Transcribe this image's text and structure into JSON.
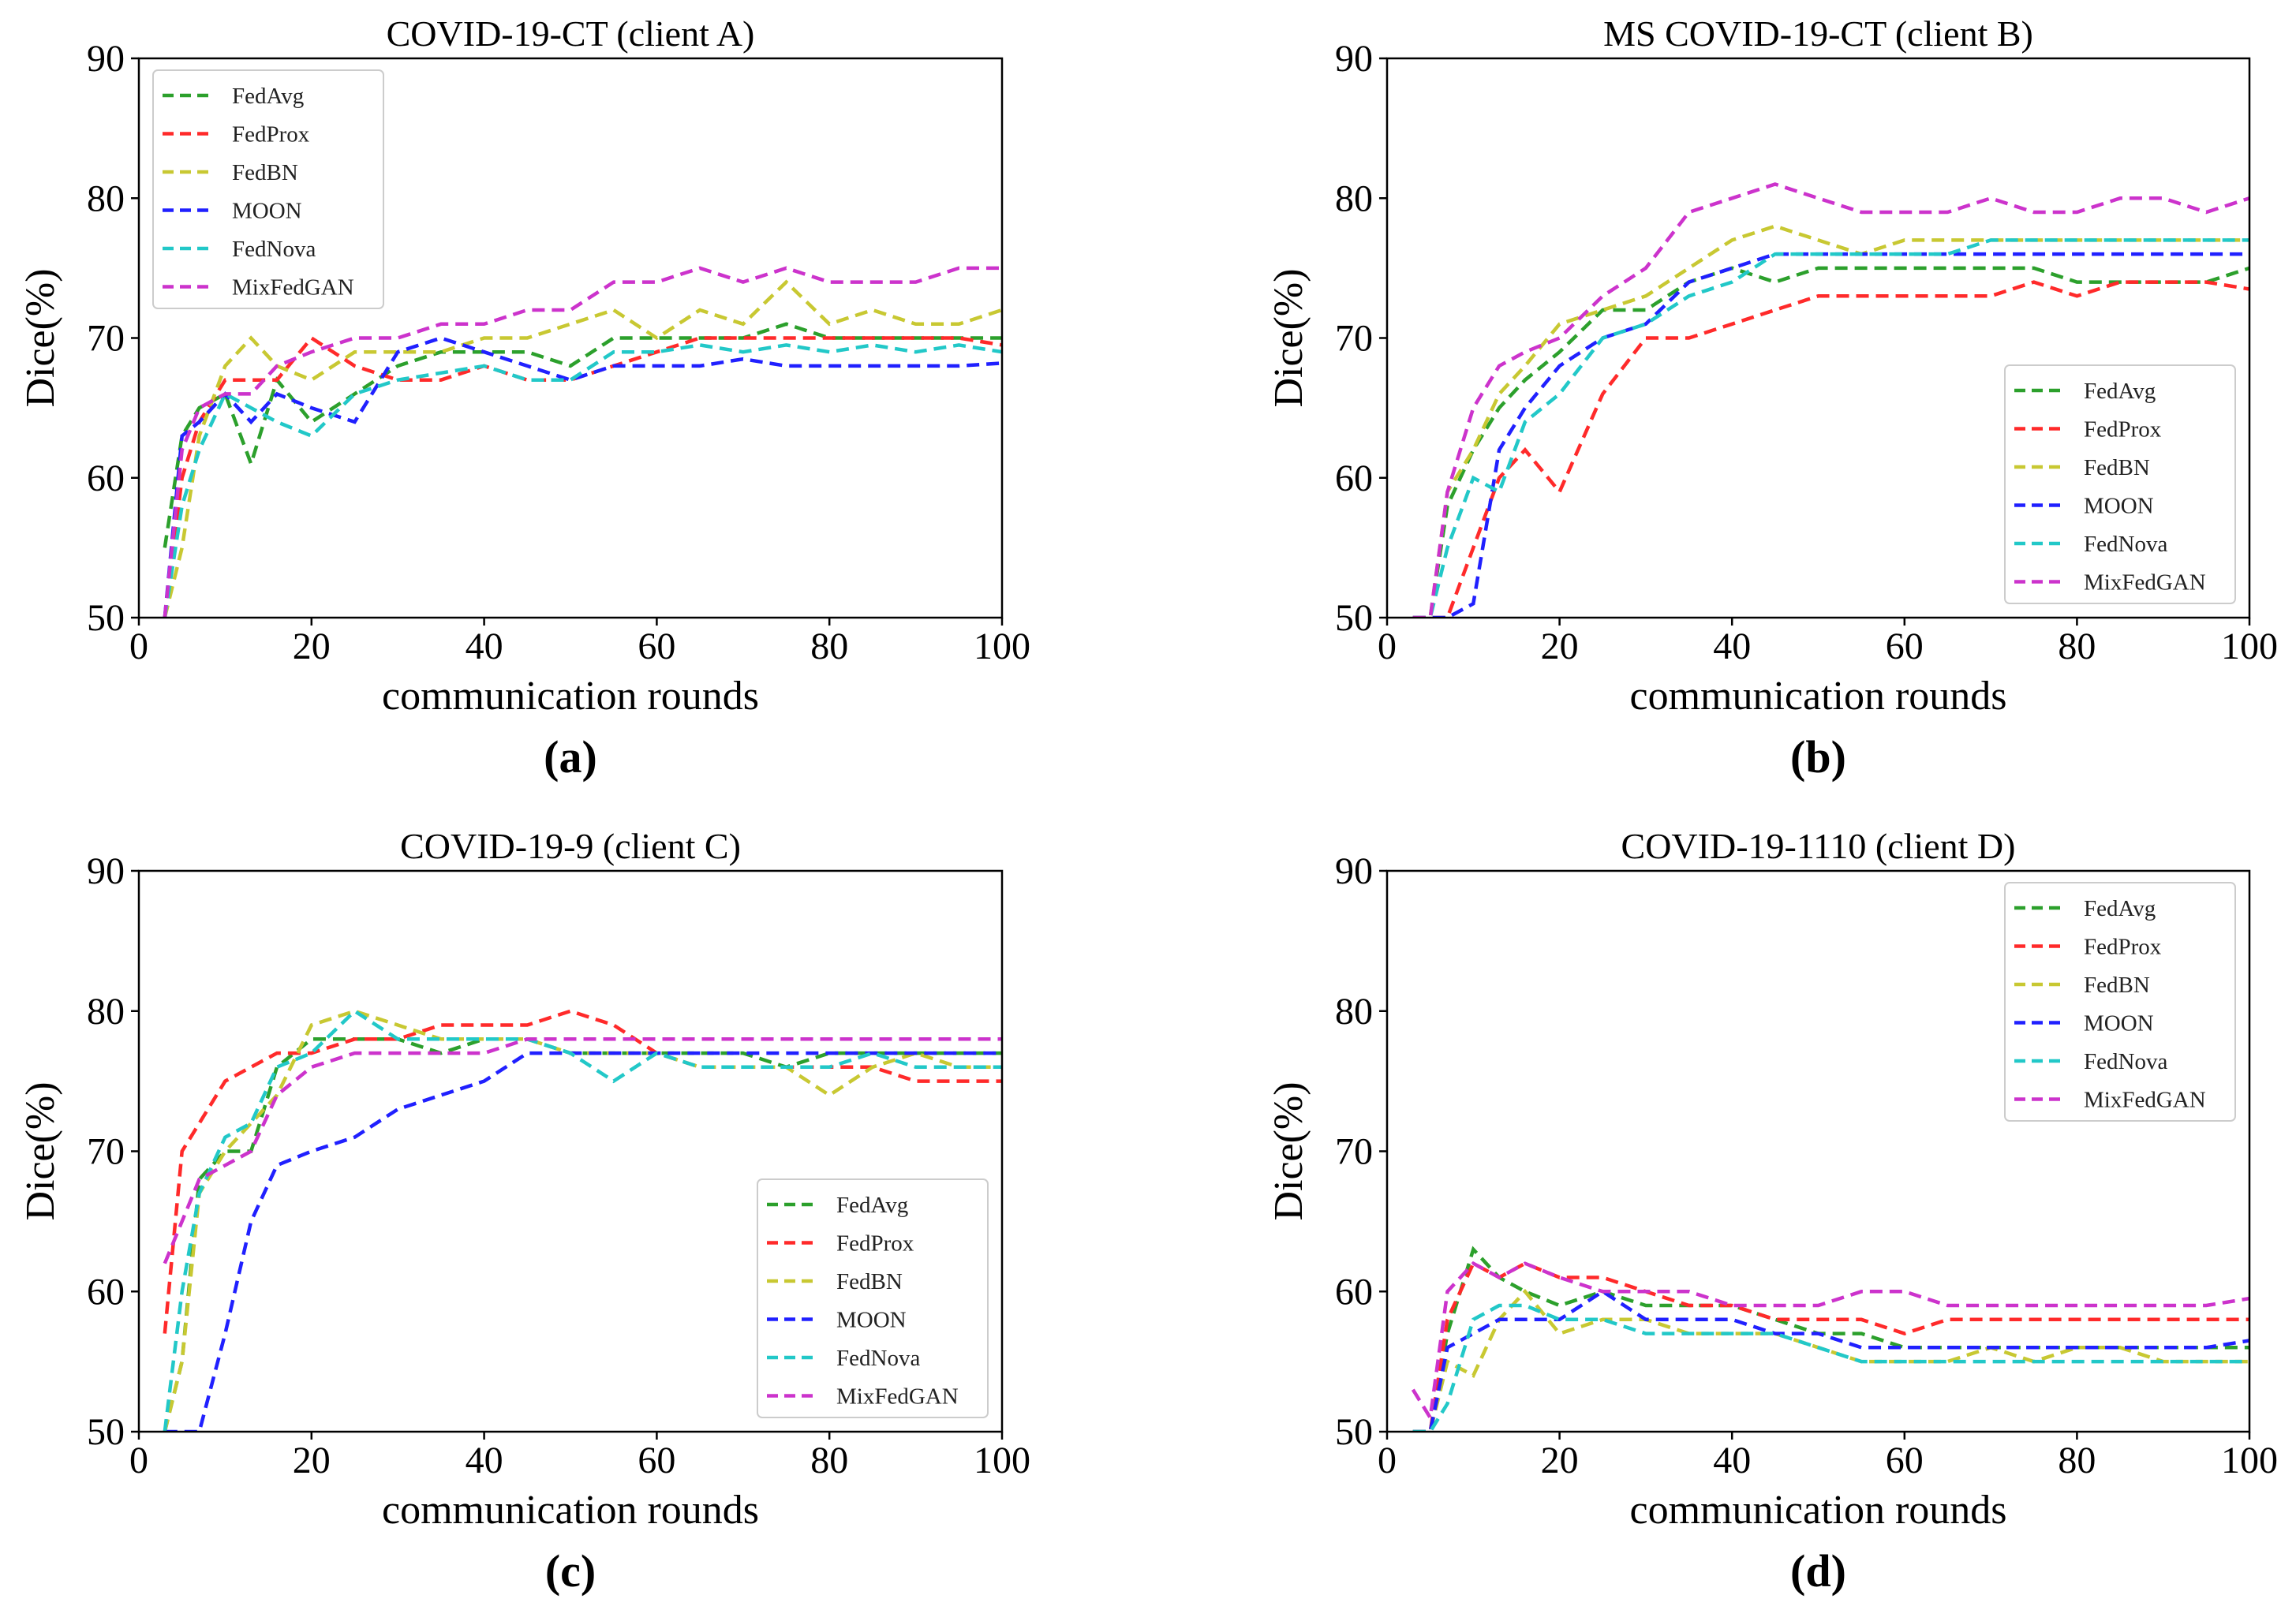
{
  "chart_data": [
    {
      "type": "line",
      "panel_label": "(a)",
      "title": "COVID-19-CT (client A)",
      "xlabel": "communication rounds",
      "ylabel": "Dice(%)",
      "xlim": [
        0,
        100
      ],
      "ylim": [
        50,
        90
      ],
      "xticks": [
        "0",
        "20",
        "40",
        "60",
        "80",
        "100"
      ],
      "yticks": [
        "50",
        "60",
        "70",
        "80",
        "90"
      ],
      "legend": "top-left",
      "x": [
        3,
        5,
        7,
        10,
        13,
        16,
        20,
        25,
        30,
        35,
        40,
        45,
        50,
        55,
        60,
        65,
        70,
        75,
        80,
        85,
        90,
        95,
        100
      ],
      "series": [
        {
          "name": "FedAvg",
          "color": "#2ca02c",
          "values": [
            55,
            63,
            65,
            66,
            61,
            67,
            64,
            66,
            68,
            69,
            69,
            69,
            68,
            70,
            70,
            70,
            70,
            71,
            70,
            70,
            70,
            70,
            70
          ]
        },
        {
          "name": "FedProx",
          "color": "#ff2a2a",
          "values": [
            50,
            60,
            64,
            67,
            67,
            67,
            70,
            68,
            67,
            67,
            68,
            67,
            67,
            68,
            69,
            70,
            70,
            70,
            70,
            70,
            70,
            70,
            69.5
          ]
        },
        {
          "name": "FedBN",
          "color": "#c8c832",
          "values": [
            50,
            55,
            63,
            68,
            70,
            68,
            67,
            69,
            69,
            69,
            70,
            70,
            71,
            72,
            70,
            72,
            71,
            74,
            71,
            72,
            71,
            71,
            72
          ]
        },
        {
          "name": "MOON",
          "color": "#2020ff",
          "values": [
            50,
            63,
            64,
            66,
            64,
            66,
            65,
            64,
            69,
            70,
            69,
            68,
            67,
            68,
            68,
            68,
            68.5,
            68,
            68,
            68,
            68,
            68,
            68.2
          ]
        },
        {
          "name": "FedNova",
          "color": "#22c8c8",
          "values": [
            50,
            58,
            62,
            66,
            65,
            64,
            63,
            66,
            67,
            67.5,
            68,
            67,
            67,
            69,
            69,
            69.5,
            69,
            69.5,
            69,
            69.5,
            69,
            69.5,
            69
          ]
        },
        {
          "name": "MixFedGAN",
          "color": "#cc33cc",
          "values": [
            50,
            62,
            65,
            66,
            66,
            68,
            69,
            70,
            70,
            71,
            71,
            72,
            72,
            74,
            74,
            75,
            74,
            75,
            74,
            74,
            74,
            75,
            75
          ]
        }
      ]
    },
    {
      "type": "line",
      "panel_label": "(b)",
      "title": "MS COVID-19-CT (client B)",
      "xlabel": "communication rounds",
      "ylabel": "Dice(%)",
      "xlim": [
        0,
        100
      ],
      "ylim": [
        50,
        90
      ],
      "xticks": [
        "0",
        "20",
        "40",
        "60",
        "80",
        "100"
      ],
      "yticks": [
        "50",
        "60",
        "70",
        "80",
        "90"
      ],
      "legend": "lower-right",
      "x": [
        3,
        5,
        7,
        10,
        13,
        16,
        20,
        25,
        30,
        35,
        40,
        45,
        50,
        55,
        60,
        65,
        70,
        75,
        80,
        85,
        90,
        95,
        100
      ],
      "series": [
        {
          "name": "FedAvg",
          "color": "#2ca02c",
          "values": [
            50,
            50,
            58,
            62,
            65,
            67,
            69,
            72,
            72,
            74,
            75,
            74,
            75,
            75,
            75,
            75,
            75,
            75,
            74,
            74,
            74,
            74,
            75
          ]
        },
        {
          "name": "FedProx",
          "color": "#ff2a2a",
          "values": [
            50,
            50,
            50,
            55,
            60,
            62,
            59,
            66,
            70,
            70,
            71,
            72,
            73,
            73,
            73,
            73,
            73,
            74,
            73,
            74,
            74,
            74,
            73.5
          ]
        },
        {
          "name": "FedBN",
          "color": "#c8c832",
          "values": [
            50,
            50,
            59,
            62,
            66,
            68,
            71,
            72,
            73,
            75,
            77,
            78,
            77,
            76,
            77,
            77,
            77,
            77,
            77,
            77,
            77,
            77,
            77
          ]
        },
        {
          "name": "MOON",
          "color": "#2020ff",
          "values": [
            50,
            50,
            50,
            51,
            62,
            65,
            68,
            70,
            71,
            74,
            75,
            76,
            76,
            76,
            76,
            76,
            76,
            76,
            76,
            76,
            76,
            76,
            76
          ]
        },
        {
          "name": "FedNova",
          "color": "#22c8c8",
          "values": [
            50,
            50,
            55,
            60,
            59,
            64,
            66,
            70,
            71,
            73,
            74,
            76,
            76,
            76,
            76,
            76,
            77,
            77,
            77,
            77,
            77,
            77,
            77
          ]
        },
        {
          "name": "MixFedGAN",
          "color": "#cc33cc",
          "values": [
            50,
            50,
            59,
            65,
            68,
            69,
            70,
            73,
            75,
            79,
            80,
            81,
            80,
            79,
            79,
            79,
            80,
            79,
            79,
            80,
            80,
            79,
            80
          ]
        }
      ]
    },
    {
      "type": "line",
      "panel_label": "(c)",
      "title": "COVID-19-9 (client C)",
      "xlabel": "communication rounds",
      "ylabel": "Dice(%)",
      "xlim": [
        0,
        100
      ],
      "ylim": [
        50,
        90
      ],
      "xticks": [
        "0",
        "20",
        "40",
        "60",
        "80",
        "100"
      ],
      "yticks": [
        "50",
        "60",
        "70",
        "80",
        "90"
      ],
      "legend": "lower-right",
      "x": [
        3,
        5,
        7,
        10,
        13,
        16,
        20,
        25,
        30,
        35,
        40,
        45,
        50,
        55,
        60,
        65,
        70,
        75,
        80,
        85,
        90,
        95,
        100
      ],
      "series": [
        {
          "name": "FedAvg",
          "color": "#2ca02c",
          "values": [
            50,
            55,
            68,
            70,
            70,
            76,
            78,
            78,
            78,
            77,
            78,
            78,
            77,
            77,
            77,
            77,
            77,
            76,
            77,
            77,
            77,
            77,
            77
          ]
        },
        {
          "name": "FedProx",
          "color": "#ff2a2a",
          "values": [
            57,
            70,
            72,
            75,
            76,
            77,
            77,
            78,
            78,
            79,
            79,
            79,
            80,
            79,
            77,
            76,
            76,
            76,
            76,
            76,
            75,
            75,
            75
          ]
        },
        {
          "name": "FedBN",
          "color": "#c8c832",
          "values": [
            50,
            55,
            67,
            70,
            72,
            74,
            79,
            80,
            79,
            78,
            78,
            78,
            77,
            77,
            77,
            76,
            76,
            76,
            74,
            76,
            77,
            76,
            76
          ]
        },
        {
          "name": "MOON",
          "color": "#2020ff",
          "values": [
            50,
            50,
            50,
            57,
            65,
            69,
            70,
            71,
            73,
            74,
            75,
            77,
            77,
            77,
            77,
            77,
            77,
            77,
            77,
            77,
            77,
            77,
            77
          ]
        },
        {
          "name": "FedNova",
          "color": "#22c8c8",
          "values": [
            50,
            60,
            67,
            71,
            72,
            76,
            77,
            80,
            78,
            78,
            78,
            78,
            77,
            75,
            77,
            76,
            76,
            76,
            76,
            77,
            76,
            76,
            76
          ]
        },
        {
          "name": "MixFedGAN",
          "color": "#cc33cc",
          "values": [
            62,
            65,
            68,
            69,
            70,
            74,
            76,
            77,
            77,
            77,
            77,
            78,
            78,
            78,
            78,
            78,
            78,
            78,
            78,
            78,
            78,
            78,
            78
          ]
        }
      ]
    },
    {
      "type": "line",
      "panel_label": "(d)",
      "title": "COVID-19-1110 (client D)",
      "xlabel": "communication rounds",
      "ylabel": "Dice(%)",
      "xlim": [
        0,
        100
      ],
      "ylim": [
        50,
        90
      ],
      "xticks": [
        "0",
        "20",
        "40",
        "60",
        "80",
        "100"
      ],
      "yticks": [
        "50",
        "60",
        "70",
        "80",
        "90"
      ],
      "legend": "top-right",
      "x": [
        3,
        5,
        7,
        10,
        13,
        16,
        20,
        25,
        30,
        35,
        40,
        45,
        50,
        55,
        60,
        65,
        70,
        75,
        80,
        85,
        90,
        95,
        100
      ],
      "series": [
        {
          "name": "FedAvg",
          "color": "#2ca02c",
          "values": [
            50,
            50,
            57,
            63,
            61,
            60,
            59,
            60,
            59,
            59,
            59,
            58,
            57,
            57,
            56,
            56,
            56,
            56,
            56,
            56,
            56,
            56,
            56
          ]
        },
        {
          "name": "FedProx",
          "color": "#ff2a2a",
          "values": [
            50,
            50,
            58,
            62,
            61,
            62,
            61,
            61,
            60,
            59,
            59,
            58,
            58,
            58,
            57,
            58,
            58,
            58,
            58,
            58,
            58,
            58,
            58
          ]
        },
        {
          "name": "FedBN",
          "color": "#c8c832",
          "values": [
            50,
            50,
            55,
            54,
            58,
            60,
            57,
            58,
            58,
            57,
            57,
            57,
            56,
            55,
            55,
            55,
            56,
            55,
            56,
            56,
            55,
            55,
            55
          ]
        },
        {
          "name": "MOON",
          "color": "#2020ff",
          "values": [
            50,
            50,
            56,
            57,
            58,
            58,
            58,
            60,
            58,
            58,
            58,
            57,
            57,
            56,
            56,
            56,
            56,
            56,
            56,
            56,
            56,
            56,
            56.5
          ]
        },
        {
          "name": "FedNova",
          "color": "#22c8c8",
          "values": [
            50,
            50,
            52,
            58,
            59,
            59,
            58,
            58,
            57,
            57,
            57,
            57,
            56,
            55,
            55,
            55,
            55,
            55,
            55,
            55,
            55,
            55,
            55
          ]
        },
        {
          "name": "MixFedGAN",
          "color": "#cc33cc",
          "values": [
            53,
            51,
            60,
            62,
            61,
            62,
            61,
            60,
            60,
            60,
            59,
            59,
            59,
            60,
            60,
            59,
            59,
            59,
            59,
            59,
            59,
            59,
            59.5
          ]
        }
      ]
    }
  ]
}
